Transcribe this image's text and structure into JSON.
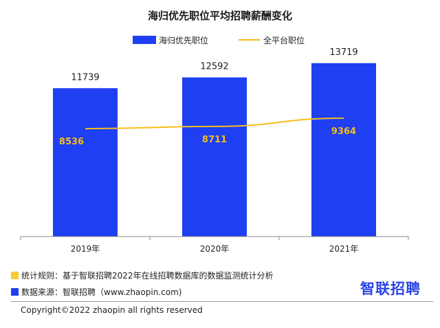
{
  "title": "海归优先职位平均招聘薪酬变化",
  "legend": {
    "bar_label": "海归优先职位",
    "line_label": "全平台职位"
  },
  "colors": {
    "bar": "#1f3ff2",
    "line": "#f5bd1c",
    "swatch_rule": "#f7c933",
    "swatch_source": "#1f3ff2"
  },
  "chart_data": {
    "type": "bar",
    "categories": [
      "2019年",
      "2020年",
      "2021年"
    ],
    "series": [
      {
        "name": "海归优先职位",
        "type": "bar",
        "values": [
          11739,
          12592,
          13719
        ]
      },
      {
        "name": "全平台职位",
        "type": "line",
        "values": [
          8536,
          8711,
          9364
        ]
      }
    ],
    "title": "海归优先职位平均招聘薪酬变化",
    "xlabel": "",
    "ylabel": "",
    "ylim": [
      0,
      14800
    ],
    "grid": false,
    "legend_position": "top"
  },
  "footnotes": {
    "rule": "统计规则：基于智联招聘2022年在线招聘数据库的数据监测统计分析",
    "source": "数据来源：智联招聘（www.zhaopin.com)"
  },
  "logo_text": "智联招聘",
  "copyright": "Copyright©2022 zhaopin all rights reserved"
}
